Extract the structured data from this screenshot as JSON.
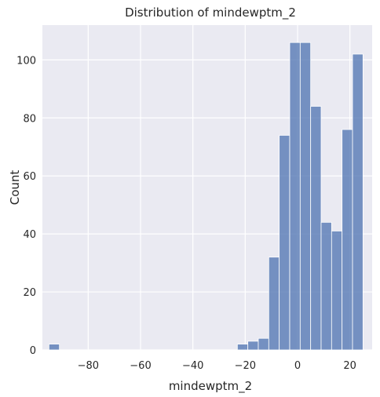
{
  "chart_data": {
    "type": "bar",
    "title": "Distribution of mindewptm_2",
    "xlabel": "mindewptm_2",
    "ylabel": "Count",
    "xlim": [
      -97.5,
      28.5
    ],
    "ylim": [
      0,
      112
    ],
    "xticks": [
      -80,
      -60,
      -40,
      -20,
      0,
      20
    ],
    "xtick_labels": [
      "−80",
      "−60",
      "−40",
      "−20",
      "0",
      "20"
    ],
    "yticks": [
      0,
      20,
      40,
      60,
      80,
      100
    ],
    "ytick_labels": [
      "0",
      "20",
      "40",
      "60",
      "80",
      "100"
    ],
    "grid": true,
    "background_color": "#eaeaf2",
    "bar_color": "#4c72b0",
    "bin_edges": [
      -95,
      -91,
      -87,
      -83,
      -79,
      -75,
      -71,
      -67,
      -63,
      -59,
      -55,
      -51,
      -47,
      -43,
      -39,
      -35,
      -31,
      -27,
      -23,
      -19,
      -15,
      -11,
      -7,
      -3,
      1,
      5,
      9,
      13,
      17,
      21,
      25
    ],
    "counts": [
      2,
      0,
      0,
      0,
      0,
      0,
      0,
      0,
      0,
      0,
      0,
      0,
      0,
      0,
      0,
      0,
      0,
      0,
      2,
      3,
      4,
      32,
      74,
      106,
      106,
      84,
      44,
      41,
      76,
      102
    ]
  }
}
